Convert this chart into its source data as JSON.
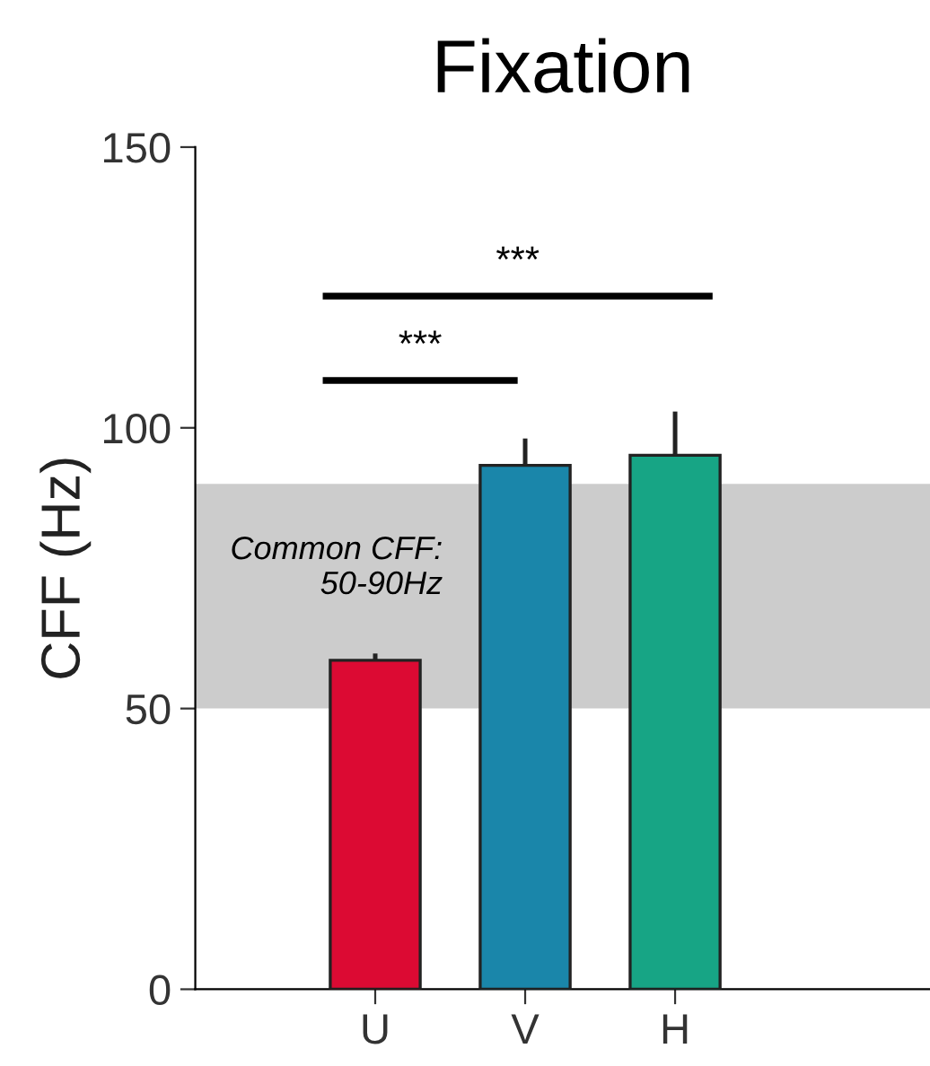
{
  "chart_data": {
    "type": "bar",
    "title": "Fixation",
    "ylabel": "CFF (Hz)",
    "categories": [
      "U",
      "V",
      "H"
    ],
    "values": [
      58.6,
      93.3,
      95.1
    ],
    "colors": [
      "#dc0a33",
      "#1a86aa",
      "#17a585"
    ],
    "errors": [
      [
        58.6,
        59.8
      ],
      [
        93.3,
        98.1
      ],
      [
        95.1,
        102.9
      ]
    ],
    "ylim": [
      0,
      150
    ],
    "yticks": [
      0,
      50,
      100,
      150
    ],
    "bands": [
      {
        "axis": "y",
        "from": 50,
        "to": 90,
        "label": "Common CFF:\n50-90Hz",
        "color": "#cccccc"
      }
    ],
    "annotations": [
      "***",
      "***"
    ],
    "grid": false,
    "legend": false
  }
}
